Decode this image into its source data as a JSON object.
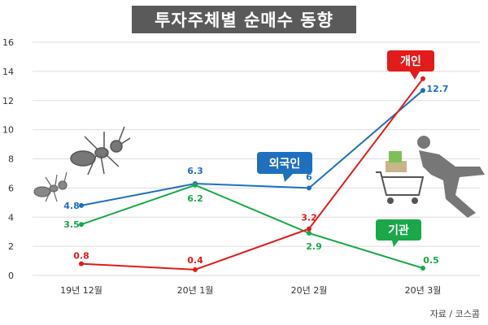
{
  "chart_data": {
    "type": "line",
    "title": "투자주체별 순매수 동향",
    "categories": [
      "19년 12월",
      "20년 1월",
      "20년 2월",
      "20년 3월"
    ],
    "ylim": [
      0,
      16
    ],
    "yticks": [
      0,
      2,
      4,
      6,
      8,
      10,
      12,
      14,
      16
    ],
    "grid": true,
    "series": [
      {
        "name": "외국인",
        "color": "#1f6fbf",
        "values": [
          4.8,
          6.3,
          6,
          12.7
        ]
      },
      {
        "name": "기관",
        "color": "#1aa84a",
        "values": [
          3.5,
          6.2,
          2.9,
          0.5
        ]
      },
      {
        "name": "개인",
        "color": "#e21b1b",
        "values": [
          0.8,
          0.4,
          3.2,
          13.5
        ]
      }
    ],
    "data_labels": {
      "외국인": [
        "4.8",
        "6.3",
        "6",
        "12.7"
      ],
      "기관": [
        "3.5",
        "6.2",
        "2.9",
        "0.5"
      ],
      "개인": [
        "0.8",
        "0.4",
        "3.2",
        ""
      ]
    },
    "source": "자료 / 코스콤"
  }
}
